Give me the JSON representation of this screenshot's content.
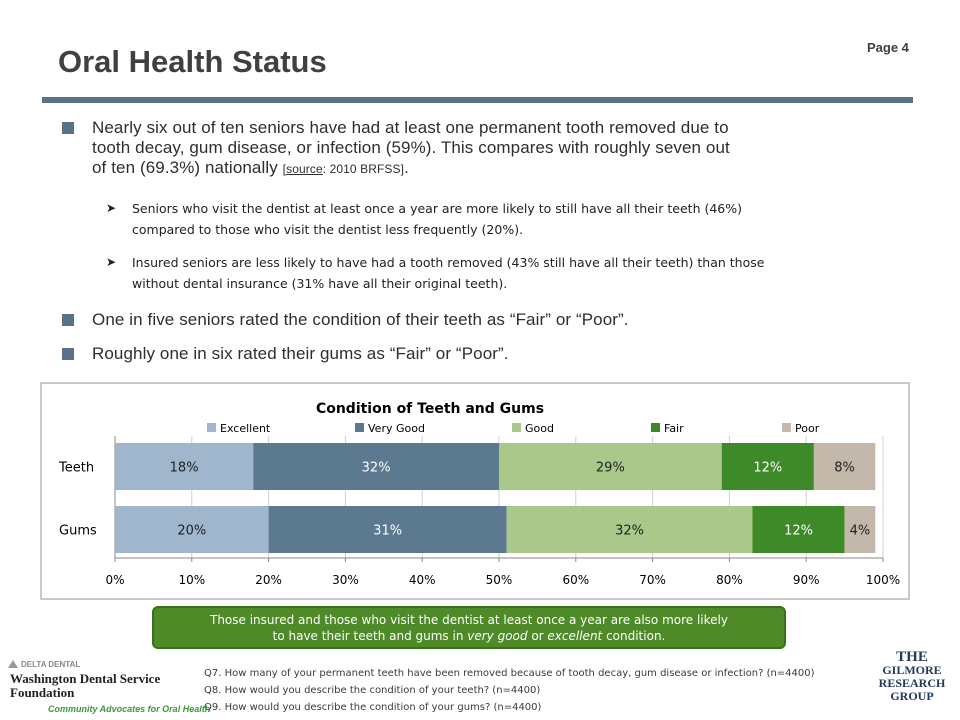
{
  "header": {
    "title": "Oral Health Status",
    "page": "Page 4"
  },
  "bullets": {
    "b1": {
      "lines": [
        "Nearly six out of ten seniors have had at least one permanent tooth removed due to",
        "tooth decay, gum disease, or infection (59%).  This compares with roughly seven out",
        "of ten (69.3%) nationally"
      ],
      "src_open": "[",
      "src_label": "source",
      "src_rest": ": 2010 BRFSS]",
      "src_end": "."
    },
    "sub1": {
      "lines": [
        "Seniors who visit the dentist at least once a year are more likely to still have all their teeth (46%)",
        "compared to those who visit the dentist less frequently (20%)."
      ]
    },
    "sub2": {
      "lines": [
        "Insured seniors are less likely to have had a tooth removed (43% still have all their teeth) than those",
        "without dental insurance (31% have all their original teeth)."
      ]
    },
    "b2": "One in five seniors rated the condition of their teeth as “Fair” or “Poor”.",
    "b3": "Roughly one in six rated their gums as “Fair” or “Poor”."
  },
  "chart_data": {
    "type": "bar",
    "orientation": "horizontal",
    "stacked": true,
    "title": "Condition of Teeth and Gums",
    "categories": [
      "Teeth",
      "Gums"
    ],
    "series": [
      {
        "name": "Excellent",
        "values": [
          18,
          20
        ],
        "labels": [
          "18%",
          "20%"
        ],
        "color": "#9fb6cc"
      },
      {
        "name": "Very Good",
        "values": [
          32,
          31
        ],
        "labels": [
          "32%",
          "31%"
        ],
        "color": "#5b7a90"
      },
      {
        "name": "Good",
        "values": [
          29,
          32
        ],
        "labels": [
          "29%",
          "32%"
        ],
        "color": "#aac88a"
      },
      {
        "name": "Fair",
        "values": [
          12,
          12
        ],
        "labels": [
          "12%",
          "12%"
        ],
        "color": "#3e8a28"
      },
      {
        "name": "Poor",
        "values": [
          8,
          4
        ],
        "labels": [
          "8%",
          "4%"
        ],
        "color": "#c4b8aa"
      }
    ],
    "xlim": [
      0,
      100
    ],
    "xticks": [
      "0%",
      "10%",
      "20%",
      "30%",
      "40%",
      "50%",
      "60%",
      "70%",
      "80%",
      "90%",
      "100%"
    ],
    "legend_position": "top",
    "grid": true
  },
  "callout": {
    "line1": "Those insured and those who visit the dentist at least once a year are also more likely",
    "line2_pre": "to have their teeth and gums in ",
    "line2_em1": "very good",
    "line2_mid": " or ",
    "line2_em2": "excellent",
    "line2_post": " condition."
  },
  "footer": {
    "questions": [
      "Q7. How many of your permanent teeth have been removed because of tooth decay, gum disease or infection? (n=4400)",
      "Q8. How would you describe the condition of your teeth? (n=4400)",
      "Q9. How would you describe the condition of your gums? (n=4400)"
    ],
    "logo_left": {
      "top": "DELTA DENTAL",
      "name1": "Washington Dental Service",
      "name2": "Foundation",
      "tagline": "Community Advocates for Oral Health"
    },
    "logo_right": {
      "l1": "THE",
      "l2": "GILMORE",
      "l3": "RESEARCH",
      "l4": "GROUP"
    }
  },
  "colors": {
    "accent": "#5a7289",
    "callout": "#4e8a28"
  }
}
